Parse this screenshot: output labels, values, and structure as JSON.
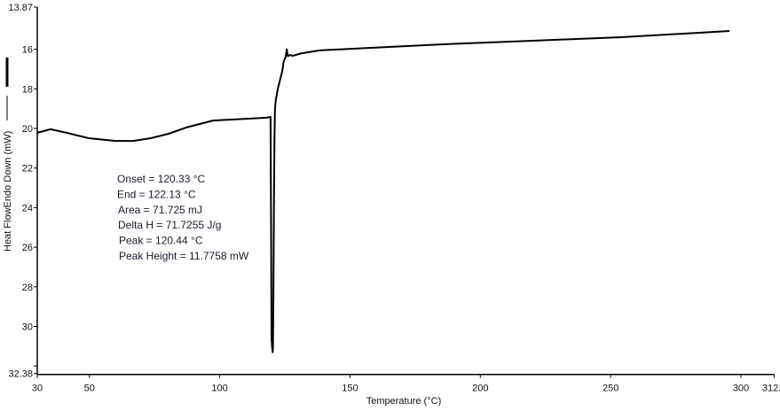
{
  "chart_data": {
    "type": "line",
    "title": "",
    "xlabel": "Temperature (°C)",
    "ylabel": "Heat FlowEndo Down (mW)",
    "xlim": [
      30,
      312.8
    ],
    "ylim": [
      13.87,
      32.38
    ],
    "y_inverted": true,
    "grid": false,
    "x_ticks": [
      "30",
      "50",
      "100",
      "150",
      "200",
      "250",
      "300",
      "312.8"
    ],
    "y_ticks": [
      "13.87",
      "16",
      "18",
      "20",
      "22",
      "24",
      "26",
      "28",
      "30",
      "32.38"
    ],
    "line_color": "#000000",
    "annotations": [
      "Onset = 120.33 °C",
      "End = 122.13 °C",
      "Area = 71.725 mJ",
      "Delta H = 71.7255 J/g",
      "Peak = 120.44 °C",
      "Peak Height = 11.7758 mW"
    ],
    "series": [
      {
        "x": [
          30,
          35.1,
          41.2,
          49.7,
          60,
          66.8,
          73.6,
          80.4,
          87.2,
          97.4,
          117.8,
          119.5,
          119.7,
          119.9,
          120.1,
          120.3,
          120.44,
          120.6,
          120.8,
          121.0,
          121.2,
          121.5,
          122.3,
          124,
          124.6,
          125.3,
          125.7,
          126.2,
          127,
          128,
          131.5,
          138.3,
          151.9,
          185.9,
          220,
          254,
          295.6
        ],
        "y": [
          20.22,
          20.04,
          20.22,
          20.49,
          20.63,
          20.63,
          20.49,
          20.27,
          19.95,
          19.6,
          19.46,
          19.42,
          25.0,
          30.6,
          31.0,
          31.3,
          31.1,
          28.5,
          24.0,
          20.5,
          19.0,
          18.6,
          17.99,
          17.1,
          16.6,
          16.4,
          16.0,
          16.35,
          16.29,
          16.33,
          16.2,
          16.06,
          15.97,
          15.75,
          15.57,
          15.39,
          15.08
        ]
      }
    ]
  }
}
